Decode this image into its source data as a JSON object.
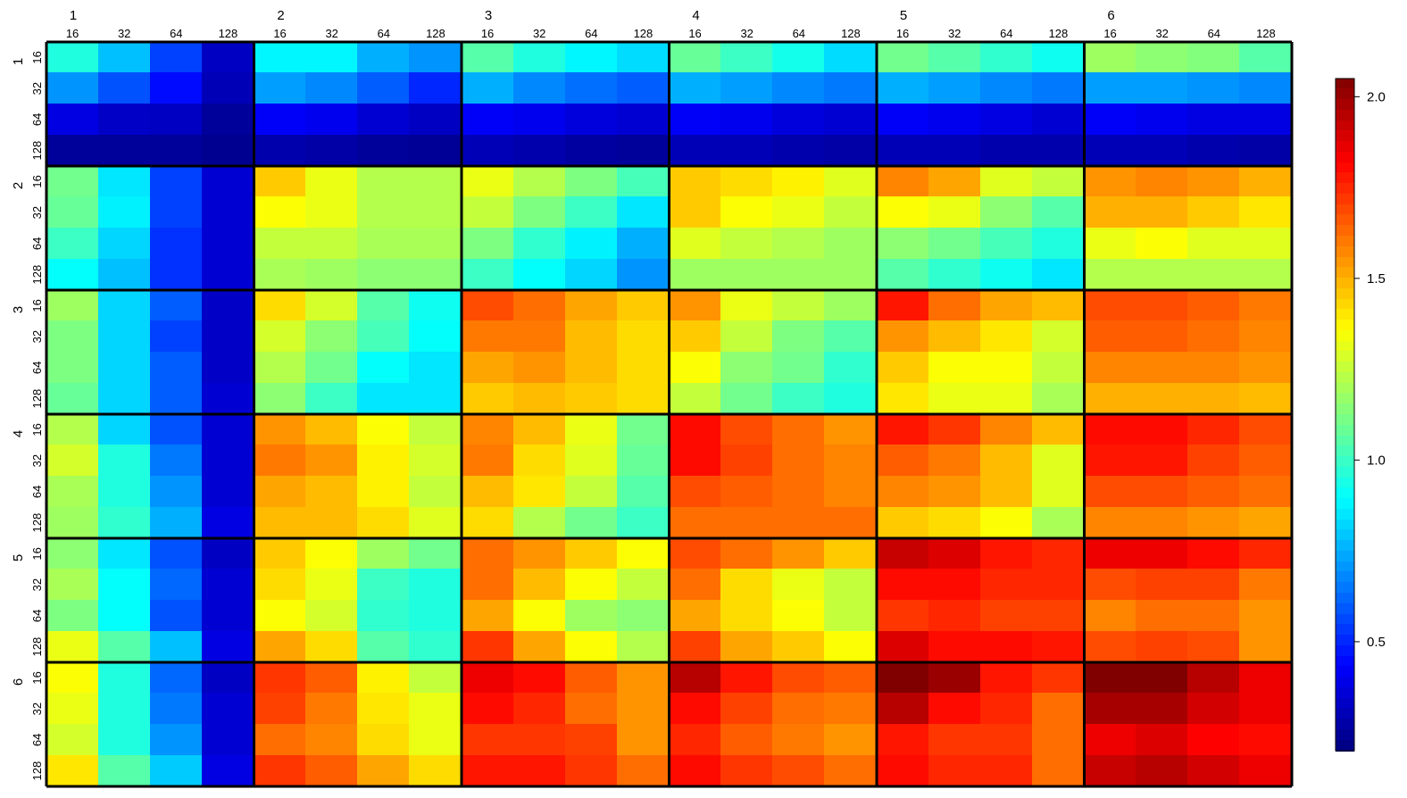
{
  "chart_data": {
    "type": "heatmap",
    "title": "",
    "xlabel": "",
    "ylabel": "",
    "groups": [
      "1",
      "2",
      "3",
      "4",
      "5",
      "6"
    ],
    "sub_levels": [
      "16",
      "32",
      "64",
      "128"
    ],
    "colorbar": {
      "min": 0.2,
      "max": 2.05,
      "ticks": [
        0.5,
        1.0,
        1.5,
        2.0
      ],
      "tick_labels": [
        "0.5",
        "1.0",
        "1.5",
        "2.0"
      ],
      "colormap": "jet"
    },
    "values": [
      [
        0.95,
        0.78,
        0.55,
        0.32,
        0.88,
        0.88,
        0.75,
        0.7,
        1.05,
        0.95,
        0.88,
        0.83,
        1.08,
        1.0,
        0.93,
        0.83,
        1.1,
        1.05,
        0.98,
        0.92,
        1.18,
        1.15,
        1.13,
        1.05
      ],
      [
        0.7,
        0.58,
        0.45,
        0.3,
        0.72,
        0.68,
        0.6,
        0.5,
        0.75,
        0.68,
        0.63,
        0.6,
        0.75,
        0.72,
        0.68,
        0.65,
        0.75,
        0.72,
        0.68,
        0.65,
        0.72,
        0.72,
        0.7,
        0.68
      ],
      [
        0.38,
        0.33,
        0.32,
        0.25,
        0.42,
        0.4,
        0.35,
        0.32,
        0.42,
        0.4,
        0.37,
        0.35,
        0.42,
        0.4,
        0.37,
        0.35,
        0.42,
        0.4,
        0.38,
        0.35,
        0.42,
        0.4,
        0.38,
        0.38
      ],
      [
        0.25,
        0.25,
        0.25,
        0.23,
        0.28,
        0.27,
        0.25,
        0.24,
        0.3,
        0.28,
        0.26,
        0.25,
        0.3,
        0.3,
        0.28,
        0.27,
        0.3,
        0.3,
        0.28,
        0.28,
        0.3,
        0.3,
        0.28,
        0.27
      ],
      [
        1.1,
        0.85,
        0.55,
        0.35,
        1.45,
        1.32,
        1.22,
        1.22,
        1.32,
        1.22,
        1.12,
        1.02,
        1.45,
        1.42,
        1.38,
        1.3,
        1.58,
        1.52,
        1.3,
        1.25,
        1.55,
        1.58,
        1.55,
        1.5
      ],
      [
        1.08,
        0.87,
        0.55,
        0.35,
        1.35,
        1.32,
        1.22,
        1.22,
        1.25,
        1.12,
        1.0,
        0.85,
        1.45,
        1.35,
        1.32,
        1.25,
        1.35,
        1.32,
        1.15,
        1.05,
        1.5,
        1.5,
        1.45,
        1.4
      ],
      [
        1.0,
        0.82,
        0.52,
        0.35,
        1.25,
        1.25,
        1.2,
        1.2,
        1.12,
        0.98,
        0.87,
        0.75,
        1.3,
        1.25,
        1.22,
        1.18,
        1.15,
        1.1,
        1.02,
        0.95,
        1.32,
        1.35,
        1.3,
        1.3
      ],
      [
        0.9,
        0.78,
        0.52,
        0.35,
        1.2,
        1.18,
        1.15,
        1.15,
        1.0,
        0.9,
        0.82,
        0.7,
        1.18,
        1.18,
        1.18,
        1.18,
        1.05,
        0.98,
        0.92,
        0.85,
        1.22,
        1.22,
        1.22,
        1.22
      ],
      [
        1.18,
        0.82,
        0.6,
        0.33,
        1.42,
        1.28,
        1.05,
        0.92,
        1.68,
        1.62,
        1.52,
        1.45,
        1.55,
        1.32,
        1.25,
        1.18,
        1.78,
        1.62,
        1.52,
        1.48,
        1.68,
        1.68,
        1.65,
        1.6
      ],
      [
        1.12,
        0.82,
        0.55,
        0.33,
        1.28,
        1.15,
        1.02,
        0.9,
        1.6,
        1.6,
        1.48,
        1.42,
        1.45,
        1.25,
        1.12,
        1.05,
        1.55,
        1.48,
        1.4,
        1.28,
        1.65,
        1.65,
        1.62,
        1.58
      ],
      [
        1.12,
        0.82,
        0.6,
        0.33,
        1.22,
        1.1,
        0.9,
        0.85,
        1.52,
        1.55,
        1.48,
        1.42,
        1.35,
        1.15,
        1.1,
        0.98,
        1.45,
        1.35,
        1.35,
        1.25,
        1.58,
        1.58,
        1.58,
        1.55
      ],
      [
        1.08,
        0.82,
        0.6,
        0.35,
        1.15,
        1.0,
        0.85,
        0.85,
        1.45,
        1.48,
        1.45,
        1.42,
        1.25,
        1.1,
        1.0,
        0.95,
        1.4,
        1.32,
        1.32,
        1.2,
        1.5,
        1.5,
        1.5,
        1.48
      ],
      [
        1.22,
        0.82,
        0.58,
        0.35,
        1.55,
        1.48,
        1.35,
        1.25,
        1.58,
        1.48,
        1.32,
        1.1,
        1.8,
        1.68,
        1.62,
        1.55,
        1.78,
        1.72,
        1.58,
        1.48,
        1.8,
        1.8,
        1.75,
        1.68
      ],
      [
        1.28,
        0.95,
        0.65,
        0.35,
        1.6,
        1.55,
        1.38,
        1.28,
        1.6,
        1.42,
        1.3,
        1.08,
        1.8,
        1.7,
        1.62,
        1.58,
        1.65,
        1.6,
        1.48,
        1.3,
        1.78,
        1.78,
        1.7,
        1.65
      ],
      [
        1.2,
        0.95,
        0.7,
        0.35,
        1.52,
        1.48,
        1.38,
        1.25,
        1.48,
        1.4,
        1.25,
        1.05,
        1.68,
        1.65,
        1.62,
        1.58,
        1.58,
        1.55,
        1.48,
        1.3,
        1.68,
        1.68,
        1.65,
        1.62
      ],
      [
        1.18,
        0.98,
        0.75,
        0.38,
        1.48,
        1.48,
        1.42,
        1.3,
        1.42,
        1.22,
        1.1,
        1.0,
        1.62,
        1.62,
        1.62,
        1.62,
        1.45,
        1.42,
        1.35,
        1.2,
        1.58,
        1.58,
        1.55,
        1.52
      ],
      [
        1.15,
        0.85,
        0.58,
        0.32,
        1.45,
        1.35,
        1.18,
        1.1,
        1.62,
        1.55,
        1.45,
        1.35,
        1.68,
        1.62,
        1.55,
        1.45,
        1.92,
        1.88,
        1.78,
        1.75,
        1.85,
        1.85,
        1.8,
        1.75
      ],
      [
        1.2,
        0.9,
        0.62,
        0.35,
        1.42,
        1.32,
        1.0,
        0.95,
        1.62,
        1.48,
        1.35,
        1.25,
        1.62,
        1.42,
        1.32,
        1.25,
        1.8,
        1.8,
        1.75,
        1.75,
        1.68,
        1.7,
        1.7,
        1.6
      ],
      [
        1.12,
        0.9,
        0.58,
        0.35,
        1.35,
        1.28,
        0.98,
        0.95,
        1.52,
        1.35,
        1.18,
        1.15,
        1.52,
        1.42,
        1.35,
        1.25,
        1.72,
        1.75,
        1.7,
        1.7,
        1.58,
        1.62,
        1.62,
        1.55
      ],
      [
        1.32,
        1.05,
        0.78,
        0.38,
        1.52,
        1.42,
        1.05,
        0.98,
        1.72,
        1.52,
        1.35,
        1.22,
        1.7,
        1.52,
        1.45,
        1.35,
        1.88,
        1.8,
        1.8,
        1.78,
        1.68,
        1.7,
        1.68,
        1.55
      ],
      [
        1.35,
        0.95,
        0.62,
        0.32,
        1.72,
        1.65,
        1.38,
        1.25,
        1.85,
        1.8,
        1.65,
        1.55,
        1.95,
        1.78,
        1.68,
        1.65,
        2.05,
        2.0,
        1.78,
        1.72,
        2.05,
        2.05,
        1.95,
        1.85
      ],
      [
        1.32,
        0.95,
        0.65,
        0.35,
        1.7,
        1.6,
        1.4,
        1.32,
        1.8,
        1.75,
        1.62,
        1.55,
        1.8,
        1.7,
        1.62,
        1.6,
        1.95,
        1.8,
        1.75,
        1.62,
        1.98,
        1.98,
        1.9,
        1.85
      ],
      [
        1.28,
        0.95,
        0.7,
        0.35,
        1.62,
        1.58,
        1.42,
        1.32,
        1.72,
        1.72,
        1.7,
        1.55,
        1.75,
        1.65,
        1.6,
        1.55,
        1.78,
        1.72,
        1.72,
        1.62,
        1.85,
        1.88,
        1.82,
        1.8
      ],
      [
        1.4,
        1.05,
        0.8,
        0.38,
        1.72,
        1.65,
        1.52,
        1.42,
        1.78,
        1.78,
        1.72,
        1.62,
        1.8,
        1.72,
        1.68,
        1.62,
        1.8,
        1.75,
        1.75,
        1.62,
        1.92,
        1.95,
        1.9,
        1.85
      ]
    ]
  }
}
